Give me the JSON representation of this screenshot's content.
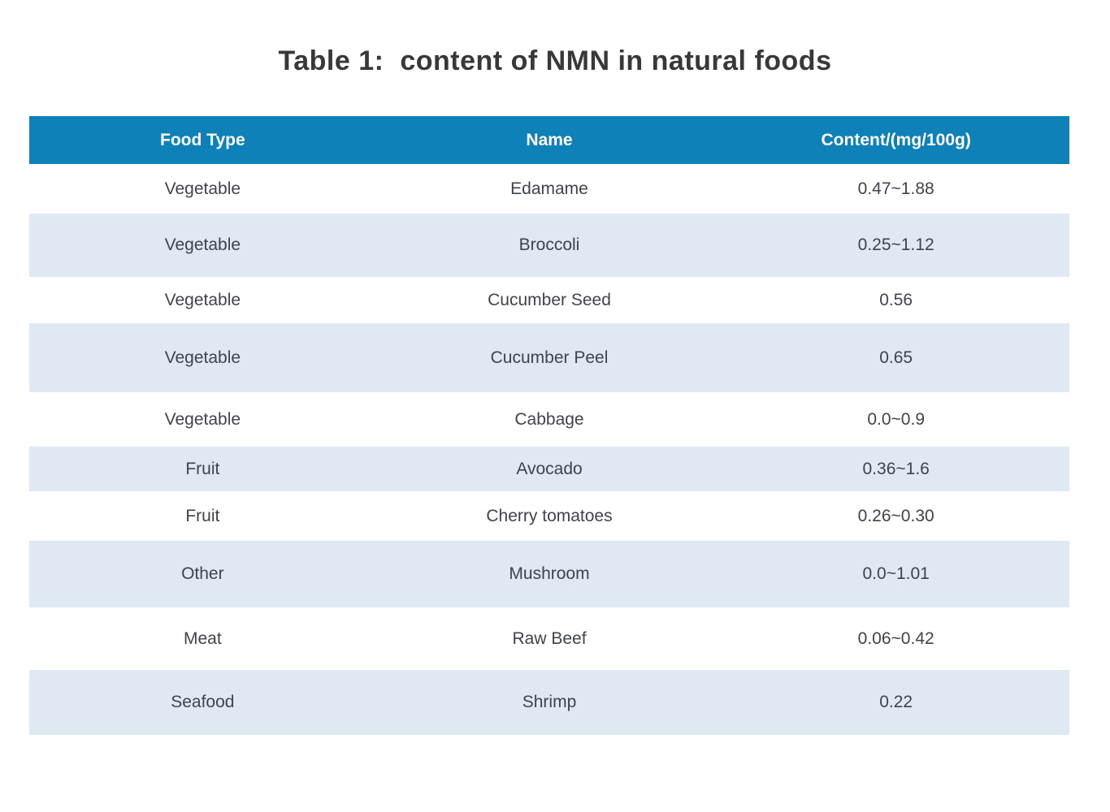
{
  "title": "Table 1:  content of NMN in natural foods",
  "colors": {
    "header_bg": "#0e81b9",
    "header_text": "#ffffff",
    "stripe_bg": "#dfe9f3",
    "body_text": "#3d4450",
    "title_text": "#383838"
  },
  "table": {
    "columns": [
      "Food Type",
      "Name",
      "Content/(mg/100g)"
    ],
    "rows": [
      {
        "food_type": "Vegetable",
        "name": "Edamame",
        "content": "0.47~1.88"
      },
      {
        "food_type": "Vegetable",
        "name": "Broccoli",
        "content": "0.25~1.12"
      },
      {
        "food_type": "Vegetable",
        "name": "Cucumber Seed",
        "content": "0.56"
      },
      {
        "food_type": "Vegetable",
        "name": "Cucumber Peel",
        "content": "0.65"
      },
      {
        "food_type": "Vegetable",
        "name": "Cabbage",
        "content": "0.0~0.9"
      },
      {
        "food_type": "Fruit",
        "name": "Avocado",
        "content": "0.36~1.6"
      },
      {
        "food_type": "Fruit",
        "name": "Cherry tomatoes",
        "content": "0.26~0.30"
      },
      {
        "food_type": "Other",
        "name": "Mushroom",
        "content": "0.0~1.01"
      },
      {
        "food_type": "Meat",
        "name": "Raw Beef",
        "content": "0.06~0.42"
      },
      {
        "food_type": "Seafood",
        "name": "Shrimp",
        "content": "0.22"
      }
    ]
  },
  "chart_data": {
    "type": "table",
    "title": "Table 1: content of NMN in natural foods",
    "columns": [
      "Food Type",
      "Name",
      "Content/(mg/100g)"
    ],
    "rows": [
      [
        "Vegetable",
        "Edamame",
        "0.47~1.88"
      ],
      [
        "Vegetable",
        "Broccoli",
        "0.25~1.12"
      ],
      [
        "Vegetable",
        "Cucumber Seed",
        "0.56"
      ],
      [
        "Vegetable",
        "Cucumber Peel",
        "0.65"
      ],
      [
        "Vegetable",
        "Cabbage",
        "0.0~0.9"
      ],
      [
        "Fruit",
        "Avocado",
        "0.36~1.6"
      ],
      [
        "Fruit",
        "Cherry tomatoes",
        "0.26~0.30"
      ],
      [
        "Other",
        "Mushroom",
        "0.0~1.01"
      ],
      [
        "Meat",
        "Raw Beef",
        "0.06~0.42"
      ],
      [
        "Seafood",
        "Shrimp",
        "0.22"
      ]
    ],
    "layout": {
      "striped": true,
      "stripe_rows": "even",
      "header_style": "solid-blue",
      "cell_align": "center"
    }
  }
}
